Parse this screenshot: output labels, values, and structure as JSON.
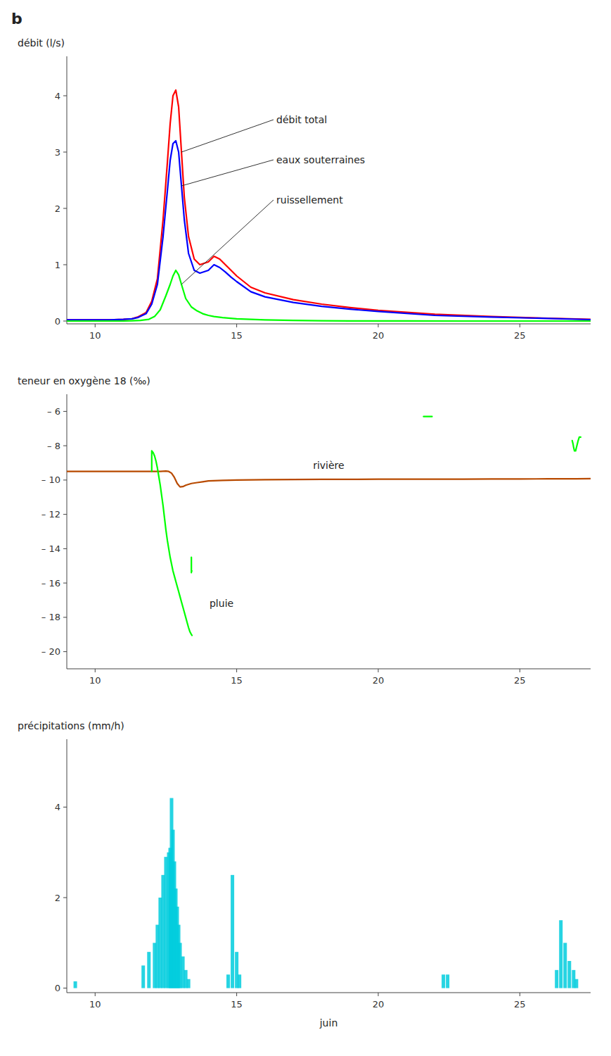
{
  "chart_data": [
    {
      "type": "line",
      "title": "b",
      "y_label": "débit (l/s)",
      "xlim": [
        9,
        27.5
      ],
      "ylim": [
        -0.05,
        4.7
      ],
      "xticks": [
        10,
        15,
        20,
        25
      ],
      "yticks": [
        0,
        1,
        2,
        3,
        4
      ],
      "series": [
        {
          "name": "débit total",
          "color": "#FF0000",
          "x": [
            9,
            9.5,
            10,
            10.5,
            11,
            11.3,
            11.5,
            11.8,
            12.0,
            12.2,
            12.4,
            12.55,
            12.65,
            12.75,
            12.85,
            12.95,
            13.05,
            13.15,
            13.3,
            13.5,
            13.7,
            14.0,
            14.2,
            14.4,
            14.6,
            14.8,
            15.0,
            15.5,
            16.0,
            17.0,
            18.0,
            19.0,
            20.0,
            22.0,
            24.0,
            26.0,
            27.5
          ],
          "values": [
            0.02,
            0.02,
            0.02,
            0.02,
            0.03,
            0.04,
            0.07,
            0.15,
            0.35,
            0.75,
            1.8,
            2.8,
            3.5,
            4.0,
            4.1,
            3.8,
            3.0,
            2.2,
            1.5,
            1.1,
            1.0,
            1.05,
            1.15,
            1.1,
            1.0,
            0.9,
            0.8,
            0.6,
            0.5,
            0.38,
            0.3,
            0.24,
            0.19,
            0.12,
            0.08,
            0.05,
            0.03
          ]
        },
        {
          "name": "eaux souterraines",
          "color": "#0000FF",
          "x": [
            9,
            9.5,
            10,
            10.5,
            11,
            11.3,
            11.5,
            11.8,
            12.0,
            12.2,
            12.4,
            12.55,
            12.65,
            12.75,
            12.85,
            12.95,
            13.05,
            13.15,
            13.3,
            13.5,
            13.7,
            14.0,
            14.2,
            14.4,
            14.6,
            14.8,
            15.0,
            15.5,
            16.0,
            17.0,
            18.0,
            19.0,
            20.0,
            22.0,
            24.0,
            26.0,
            27.5
          ],
          "values": [
            0.02,
            0.02,
            0.02,
            0.02,
            0.03,
            0.04,
            0.06,
            0.13,
            0.3,
            0.65,
            1.5,
            2.3,
            2.85,
            3.15,
            3.2,
            3.0,
            2.4,
            1.8,
            1.2,
            0.9,
            0.85,
            0.9,
            1.0,
            0.95,
            0.87,
            0.78,
            0.7,
            0.52,
            0.43,
            0.33,
            0.26,
            0.21,
            0.17,
            0.1,
            0.07,
            0.045,
            0.025
          ]
        },
        {
          "name": "ruissellement",
          "color": "#00FF00",
          "x": [
            9,
            10,
            11,
            11.3,
            11.6,
            11.9,
            12.1,
            12.3,
            12.5,
            12.65,
            12.75,
            12.85,
            12.95,
            13.05,
            13.2,
            13.4,
            13.6,
            13.8,
            14.0,
            14.2,
            14.5,
            15.0,
            15.5,
            16.0,
            17.0,
            18.0,
            19.0,
            21.0,
            23.0,
            27.5
          ],
          "values": [
            0,
            0,
            0,
            0.005,
            0.01,
            0.03,
            0.08,
            0.2,
            0.45,
            0.65,
            0.8,
            0.9,
            0.82,
            0.65,
            0.4,
            0.25,
            0.18,
            0.13,
            0.1,
            0.08,
            0.06,
            0.04,
            0.03,
            0.02,
            0.01,
            0.005,
            0.002,
            0.001,
            0,
            0
          ]
        }
      ]
    },
    {
      "type": "line",
      "y_label": "teneur en oxygène 18 (‰)",
      "xlim": [
        9,
        27.5
      ],
      "ylim": [
        -21,
        -5
      ],
      "xticks": [
        10,
        15,
        20,
        25
      ],
      "yticks": [
        {
          "value": -20,
          "label": "– 20"
        },
        {
          "value": -18,
          "label": "– 18"
        },
        {
          "value": -16,
          "label": "– 16"
        },
        {
          "value": -14,
          "label": "– 14"
        },
        {
          "value": -12,
          "label": "– 12"
        },
        {
          "value": -10,
          "label": "– 10"
        },
        {
          "value": -8,
          "label": "– 8"
        },
        {
          "value": -6,
          "label": "– 6"
        }
      ],
      "series": [
        {
          "name": "rivière",
          "color": "#B84A00",
          "x": [
            9,
            10,
            11,
            11.5,
            12.0,
            12.3,
            12.5,
            12.6,
            12.7,
            12.8,
            12.9,
            13.0,
            13.1,
            13.2,
            13.4,
            13.6,
            13.8,
            14.0,
            14.5,
            15.0,
            16.0,
            17.0,
            18.0,
            19.0,
            20.0,
            21.0,
            22.0,
            23.0,
            24.0,
            25.0,
            26.0,
            27.0,
            27.5
          ],
          "values": [
            -9.5,
            -9.5,
            -9.5,
            -9.5,
            -9.5,
            -9.5,
            -9.48,
            -9.5,
            -9.6,
            -9.85,
            -10.2,
            -10.4,
            -10.38,
            -10.3,
            -10.2,
            -10.15,
            -10.1,
            -10.05,
            -10.02,
            -10.0,
            -9.98,
            -9.97,
            -9.96,
            -9.96,
            -9.95,
            -9.95,
            -9.95,
            -9.95,
            -9.94,
            -9.94,
            -9.93,
            -9.93,
            -9.92
          ]
        },
        {
          "name": "pluie",
          "color": "#00FF00",
          "x": [
            12.0,
            12.0,
            12.0,
            12.05,
            12.1,
            12.15,
            12.2,
            12.25,
            12.3,
            12.35,
            12.4,
            12.45,
            12.5,
            12.55,
            12.6,
            12.65,
            12.7,
            12.75,
            12.8,
            12.85,
            12.9,
            12.95,
            13.0,
            13.05,
            13.1,
            13.15,
            13.2,
            13.25,
            13.3,
            13.35,
            13.4,
            13.42,
            null,
            13.4,
            13.4,
            13.42,
            null,
            12.0,
            12.0,
            null,
            13.4,
            13.4,
            null,
            21.6,
            21.9,
            null,
            26.85,
            26.88,
            26.9,
            26.93,
            26.97,
            27.0,
            27.03,
            27.06,
            27.1,
            27.15
          ],
          "values": [
            -9.5,
            -8.3,
            -8.3,
            -8.4,
            -8.6,
            -8.9,
            -9.3,
            -9.8,
            -10.3,
            -10.9,
            -11.5,
            -12.2,
            -12.9,
            -13.5,
            -14.0,
            -14.5,
            -14.9,
            -15.3,
            -15.6,
            -15.9,
            -16.2,
            -16.5,
            -16.8,
            -17.1,
            -17.4,
            -17.7,
            -18.0,
            -18.3,
            -18.6,
            -18.85,
            -19.0,
            -19.05,
            null,
            -14.5,
            -15.3,
            -15.3,
            null,
            -9.5,
            -8.3,
            null,
            -14.5,
            -15.4,
            null,
            -6.3,
            -6.3,
            null,
            -7.7,
            -7.9,
            -8.1,
            -8.3,
            -8.3,
            -8.1,
            -7.9,
            -7.7,
            -7.5,
            -7.5
          ]
        }
      ]
    },
    {
      "type": "bar",
      "y_label": "précipitations (mm/h)",
      "x_label": "juin",
      "color": "#00CCDD",
      "xlim": [
        9,
        27.5
      ],
      "ylim": [
        -0.1,
        5.5
      ],
      "xticks": [
        10,
        15,
        20,
        25
      ],
      "yticks": [
        0,
        2,
        4
      ],
      "x": [
        9.3,
        11.7,
        11.9,
        12.1,
        12.2,
        12.3,
        12.4,
        12.5,
        12.6,
        12.65,
        12.7,
        12.75,
        12.8,
        12.85,
        12.9,
        12.95,
        13.0,
        13.1,
        13.2,
        13.3,
        14.7,
        14.85,
        15.0,
        15.1,
        22.3,
        22.45,
        26.3,
        26.45,
        26.6,
        26.75,
        26.9,
        27.0
      ],
      "values": [
        0.15,
        0.5,
        0.8,
        1.0,
        1.4,
        2.0,
        2.5,
        2.9,
        3.0,
        3.1,
        4.2,
        3.5,
        2.8,
        2.2,
        1.8,
        1.4,
        1.0,
        0.7,
        0.4,
        0.2,
        0.3,
        2.5,
        0.8,
        0.3,
        0.3,
        0.3,
        0.4,
        1.5,
        1.0,
        0.6,
        0.4,
        0.2
      ]
    }
  ]
}
